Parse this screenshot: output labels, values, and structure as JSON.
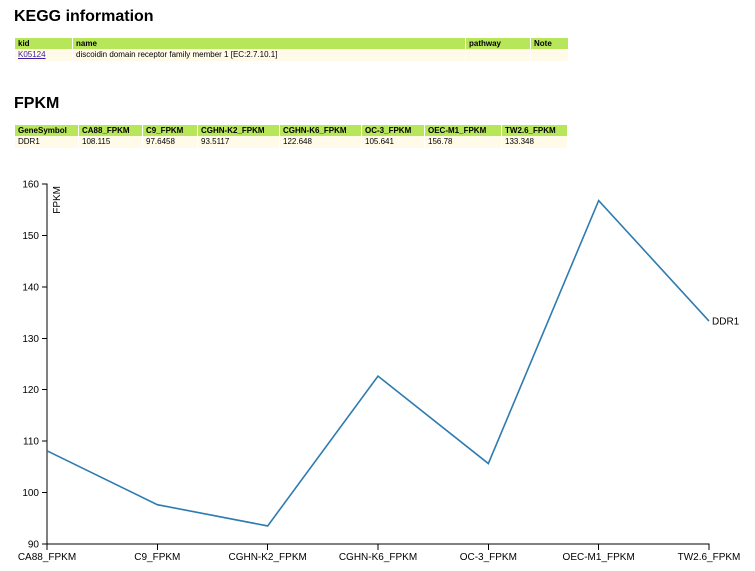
{
  "kegg": {
    "title": "KEGG information",
    "headers": [
      "kid",
      "name",
      "pathway",
      "Note"
    ],
    "row": {
      "kid": "K05124",
      "name": "discoidin domain receptor family member 1 [EC:2.7.10.1]",
      "pathway": "",
      "note": ""
    }
  },
  "fpkm": {
    "title": "FPKM",
    "headers": [
      "GeneSymbol",
      "CA88_FPKM",
      "C9_FPKM",
      "CGHN-K2_FPKM",
      "CGHN-K6_FPKM",
      "OC-3_FPKM",
      "OEC-M1_FPKM",
      "TW2.6_FPKM"
    ],
    "row": [
      "DDR1",
      "108.115",
      "97.6458",
      "93.5117",
      "122.648",
      "105.641",
      "156.78",
      "133.348"
    ]
  },
  "colors": {
    "header_bg": "#b8e65a",
    "cell_bg": "#fffbe8",
    "line": "#2e7bb0"
  },
  "chart_data": {
    "type": "line",
    "ylabel": "FPKM",
    "xlabel": "",
    "ylim": [
      90,
      160
    ],
    "yticks": [
      90,
      100,
      110,
      120,
      130,
      140,
      150,
      160
    ],
    "categories": [
      "CA88_FPKM",
      "C9_FPKM",
      "CGHN-K2_FPKM",
      "CGHN-K6_FPKM",
      "OC-3_FPKM",
      "OEC-M1_FPKM",
      "TW2.6_FPKM"
    ],
    "series": [
      {
        "name": "DDR1",
        "values": [
          108.115,
          97.6458,
          93.5117,
          122.648,
          105.641,
          156.78,
          133.348
        ]
      }
    ],
    "grid": false,
    "legend": "end-of-line label"
  }
}
